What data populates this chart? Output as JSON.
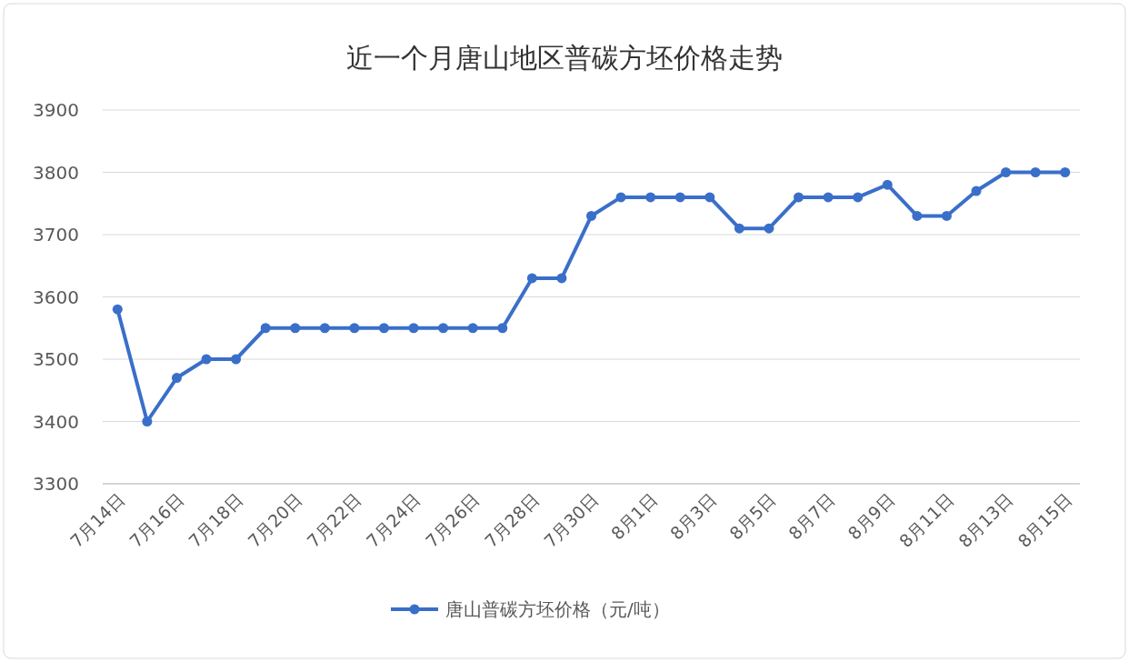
{
  "chart_data": {
    "type": "line",
    "title": "近一个月唐山地区普碳方坯价格走势",
    "categories": [
      "7月14日",
      null,
      "7月16日",
      null,
      "7月18日",
      null,
      "7月20日",
      null,
      "7月22日",
      null,
      "7月24日",
      null,
      "7月26日",
      null,
      "7月28日",
      null,
      "7月30日",
      null,
      "8月1日",
      null,
      "8月3日",
      null,
      "8月5日",
      null,
      "8月7日",
      null,
      "8月9日",
      null,
      "8月11日",
      null,
      "8月13日",
      null,
      "8月15日"
    ],
    "series": [
      {
        "name": "唐山普碳方坯价格（元/吨）",
        "color": "#3a6fc9",
        "values": [
          3580,
          3400,
          3470,
          3500,
          3500,
          3550,
          3550,
          3550,
          3550,
          3550,
          3550,
          3550,
          3550,
          3550,
          3630,
          3630,
          3730,
          3760,
          3760,
          3760,
          3760,
          3710,
          3710,
          3760,
          3760,
          3760,
          3780,
          3730,
          3730,
          3770,
          3800,
          3800,
          3800
        ]
      }
    ],
    "ylim": [
      3300,
      3900
    ],
    "yticks": [
      3300,
      3400,
      3500,
      3600,
      3700,
      3800,
      3900
    ],
    "grid": "y",
    "legend": "bottom",
    "marker": "circle",
    "line_style": "solid"
  }
}
